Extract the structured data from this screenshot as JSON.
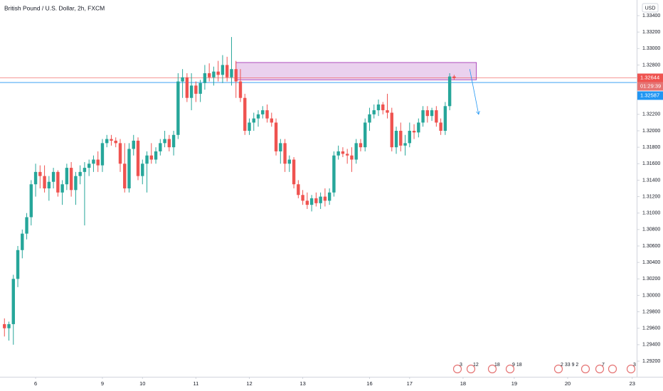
{
  "chart_data": {
    "type": "candlestick",
    "title": "British Pound / U.S. Dollar, 2h, FXCM",
    "currency": "USD",
    "up_color": "#26a69a",
    "down_color": "#ef5350",
    "open": [
      1.2965,
      1.296,
      1.2965,
      1.302,
      1.3055,
      1.3075,
      1.3095,
      1.3135,
      1.315,
      1.3145,
      1.313,
      1.3138,
      1.315,
      1.3125,
      1.3135,
      1.3155,
      1.3128,
      1.3145,
      1.315,
      1.3155,
      1.316,
      1.3165,
      1.3158,
      1.3185,
      1.319,
      1.3188,
      1.3185,
      1.316,
      1.313,
      1.3178,
      1.3188,
      1.3145,
      1.316,
      1.317,
      1.3165,
      1.3175,
      1.3185,
      1.319,
      1.318,
      1.3195,
      1.326,
      1.3265,
      1.324,
      1.3255,
      1.3245,
      1.3258,
      1.327,
      1.3265,
      1.3272,
      1.3268,
      1.328,
      1.3265,
      1.3275,
      1.326,
      1.324,
      1.32,
      1.321,
      1.3215,
      1.322,
      1.3225,
      1.3215,
      1.321,
      1.3175,
      1.3185,
      1.316,
      1.3165,
      1.3135,
      1.3122,
      1.3115,
      1.311,
      1.3118,
      1.3112,
      1.312,
      1.3115,
      1.3125,
      1.317,
      1.3175,
      1.3172,
      1.317,
      1.3165,
      1.3185,
      1.318,
      1.321,
      1.322,
      1.3225,
      1.3232,
      1.3225,
      1.3222,
      1.318,
      1.32,
      1.3182,
      1.3185,
      1.32,
      1.3198,
      1.321,
      1.3225,
      1.3218,
      1.3225,
      1.321,
      1.32,
      1.323,
      1.3266
    ],
    "high": [
      1.2972,
      1.2968,
      1.3025,
      1.306,
      1.308,
      1.31,
      1.314,
      1.316,
      1.3158,
      1.3158,
      1.3145,
      1.3155,
      1.3152,
      1.314,
      1.316,
      1.3162,
      1.315,
      1.3158,
      1.3162,
      1.3165,
      1.317,
      1.3175,
      1.319,
      1.3195,
      1.3195,
      1.3192,
      1.319,
      1.3185,
      1.3185,
      1.3195,
      1.3192,
      1.3165,
      1.3175,
      1.3185,
      1.318,
      1.319,
      1.32,
      1.3195,
      1.32,
      1.327,
      1.3275,
      1.327,
      1.327,
      1.326,
      1.3262,
      1.328,
      1.3282,
      1.3278,
      1.3285,
      1.3292,
      1.329,
      1.3314,
      1.3285,
      1.3275,
      1.3245,
      1.3215,
      1.3222,
      1.3225,
      1.323,
      1.3232,
      1.3222,
      1.3215,
      1.319,
      1.319,
      1.317,
      1.3168,
      1.314,
      1.3128,
      1.3125,
      1.3122,
      1.3125,
      1.3125,
      1.313,
      1.313,
      1.3175,
      1.3182,
      1.318,
      1.3178,
      1.318,
      1.319,
      1.319,
      1.3215,
      1.3228,
      1.3232,
      1.3238,
      1.3235,
      1.3245,
      1.3228,
      1.3205,
      1.321,
      1.3195,
      1.321,
      1.3208,
      1.3215,
      1.323,
      1.323,
      1.3228,
      1.323,
      1.3215,
      1.3235,
      1.327,
      1.3268
    ],
    "low": [
      1.295,
      1.2945,
      1.294,
      1.301,
      1.3045,
      1.3068,
      1.3085,
      1.312,
      1.313,
      1.3125,
      1.3115,
      1.313,
      1.312,
      1.311,
      1.3128,
      1.312,
      1.311,
      1.3135,
      1.3085,
      1.3145,
      1.315,
      1.315,
      1.315,
      1.318,
      1.3182,
      1.318,
      1.315,
      1.3125,
      1.3125,
      1.317,
      1.314,
      1.3135,
      1.3125,
      1.316,
      1.316,
      1.317,
      1.318,
      1.3175,
      1.317,
      1.319,
      1.324,
      1.3235,
      1.3225,
      1.3235,
      1.3235,
      1.325,
      1.326,
      1.3255,
      1.326,
      1.3258,
      1.326,
      1.3255,
      1.324,
      1.3235,
      1.3195,
      1.3195,
      1.32,
      1.3205,
      1.3215,
      1.321,
      1.3205,
      1.317,
      1.316,
      1.315,
      1.315,
      1.313,
      1.3118,
      1.311,
      1.3105,
      1.3102,
      1.3108,
      1.3105,
      1.3108,
      1.311,
      1.312,
      1.3165,
      1.3168,
      1.316,
      1.315,
      1.316,
      1.3175,
      1.3175,
      1.32,
      1.3215,
      1.3218,
      1.322,
      1.3215,
      1.3175,
      1.3172,
      1.3175,
      1.317,
      1.318,
      1.319,
      1.3192,
      1.3205,
      1.321,
      1.3212,
      1.3205,
      1.3195,
      1.3195,
      1.3225,
      1.3262
    ],
    "close": [
      1.296,
      1.2965,
      1.302,
      1.3055,
      1.3075,
      1.3095,
      1.3135,
      1.315,
      1.3145,
      1.313,
      1.3138,
      1.315,
      1.3125,
      1.3135,
      1.3155,
      1.3128,
      1.3145,
      1.315,
      1.3155,
      1.316,
      1.3165,
      1.3158,
      1.3185,
      1.319,
      1.3188,
      1.3185,
      1.316,
      1.313,
      1.3178,
      1.3188,
      1.3145,
      1.316,
      1.317,
      1.3165,
      1.3175,
      1.3185,
      1.319,
      1.318,
      1.3195,
      1.326,
      1.3265,
      1.324,
      1.3255,
      1.3245,
      1.3258,
      1.327,
      1.3265,
      1.3272,
      1.3268,
      1.328,
      1.3265,
      1.3275,
      1.326,
      1.324,
      1.32,
      1.321,
      1.3215,
      1.322,
      1.3225,
      1.3215,
      1.321,
      1.3175,
      1.3185,
      1.316,
      1.3165,
      1.3135,
      1.3122,
      1.3115,
      1.311,
      1.3118,
      1.3112,
      1.312,
      1.3115,
      1.3125,
      1.317,
      1.3175,
      1.3172,
      1.317,
      1.3165,
      1.3185,
      1.318,
      1.321,
      1.322,
      1.3225,
      1.3232,
      1.3225,
      1.3222,
      1.318,
      1.32,
      1.3182,
      1.3185,
      1.32,
      1.3198,
      1.321,
      1.3225,
      1.3218,
      1.3225,
      1.321,
      1.32,
      1.323,
      1.3266,
      1.3264
    ],
    "xlim": [
      -1,
      142
    ],
    "xticks": [
      {
        "value": 7,
        "label": "6"
      },
      {
        "value": 22,
        "label": "9"
      },
      {
        "value": 31,
        "label": "10"
      },
      {
        "value": 43,
        "label": "11"
      },
      {
        "value": 55,
        "label": "12"
      },
      {
        "value": 67,
        "label": "13"
      },
      {
        "value": 82,
        "label": "16"
      },
      {
        "value": 91,
        "label": "17"
      },
      {
        "value": 103,
        "label": "18"
      },
      {
        "value": 114.5,
        "label": "19"
      },
      {
        "value": 126.5,
        "label": "20"
      },
      {
        "value": 141,
        "label": "23"
      }
    ],
    "ylim": [
      1.2901,
      1.3359
    ],
    "yticks": [
      {
        "value": 1.292,
        "label": "1.29200"
      },
      {
        "value": 1.294,
        "label": "1.29400"
      },
      {
        "value": 1.296,
        "label": "1.29600"
      },
      {
        "value": 1.298,
        "label": "1.29800"
      },
      {
        "value": 1.3,
        "label": "1.30000"
      },
      {
        "value": 1.302,
        "label": "1.30200"
      },
      {
        "value": 1.304,
        "label": "1.30400"
      },
      {
        "value": 1.306,
        "label": "1.30600"
      },
      {
        "value": 1.308,
        "label": "1.30800"
      },
      {
        "value": 1.31,
        "label": "1.31000"
      },
      {
        "value": 1.312,
        "label": "1.31200"
      },
      {
        "value": 1.314,
        "label": "1.31400"
      },
      {
        "value": 1.316,
        "label": "1.31600"
      },
      {
        "value": 1.318,
        "label": "1.31800"
      },
      {
        "value": 1.32,
        "label": "1.32000"
      },
      {
        "value": 1.322,
        "label": "1.32200"
      },
      {
        "value": 1.324,
        "label": "1.32400"
      },
      {
        "value": 1.326,
        "label": "1.32600"
      },
      {
        "value": 1.328,
        "label": "1.32800"
      },
      {
        "value": 1.33,
        "label": "1.33000"
      },
      {
        "value": 1.332,
        "label": "1.33200"
      },
      {
        "value": 1.334,
        "label": "1.33400"
      }
    ],
    "last_price": {
      "value": 1.32644,
      "color": "#ef5350"
    },
    "countdown": "01:29:39",
    "bid_price": {
      "value": 1.32587,
      "color": "#2196f3"
    },
    "zone": {
      "top": 1.3283,
      "bottom": 1.3262,
      "start": 52,
      "end": 106
    },
    "arrow": {
      "from": [
        104.5,
        1.3275
      ],
      "to": [
        106.5,
        1.322
      ]
    },
    "events": [
      "3",
      "12",
      "18",
      "9 18",
      "2 33 9 2",
      "7",
      "3"
    ]
  }
}
